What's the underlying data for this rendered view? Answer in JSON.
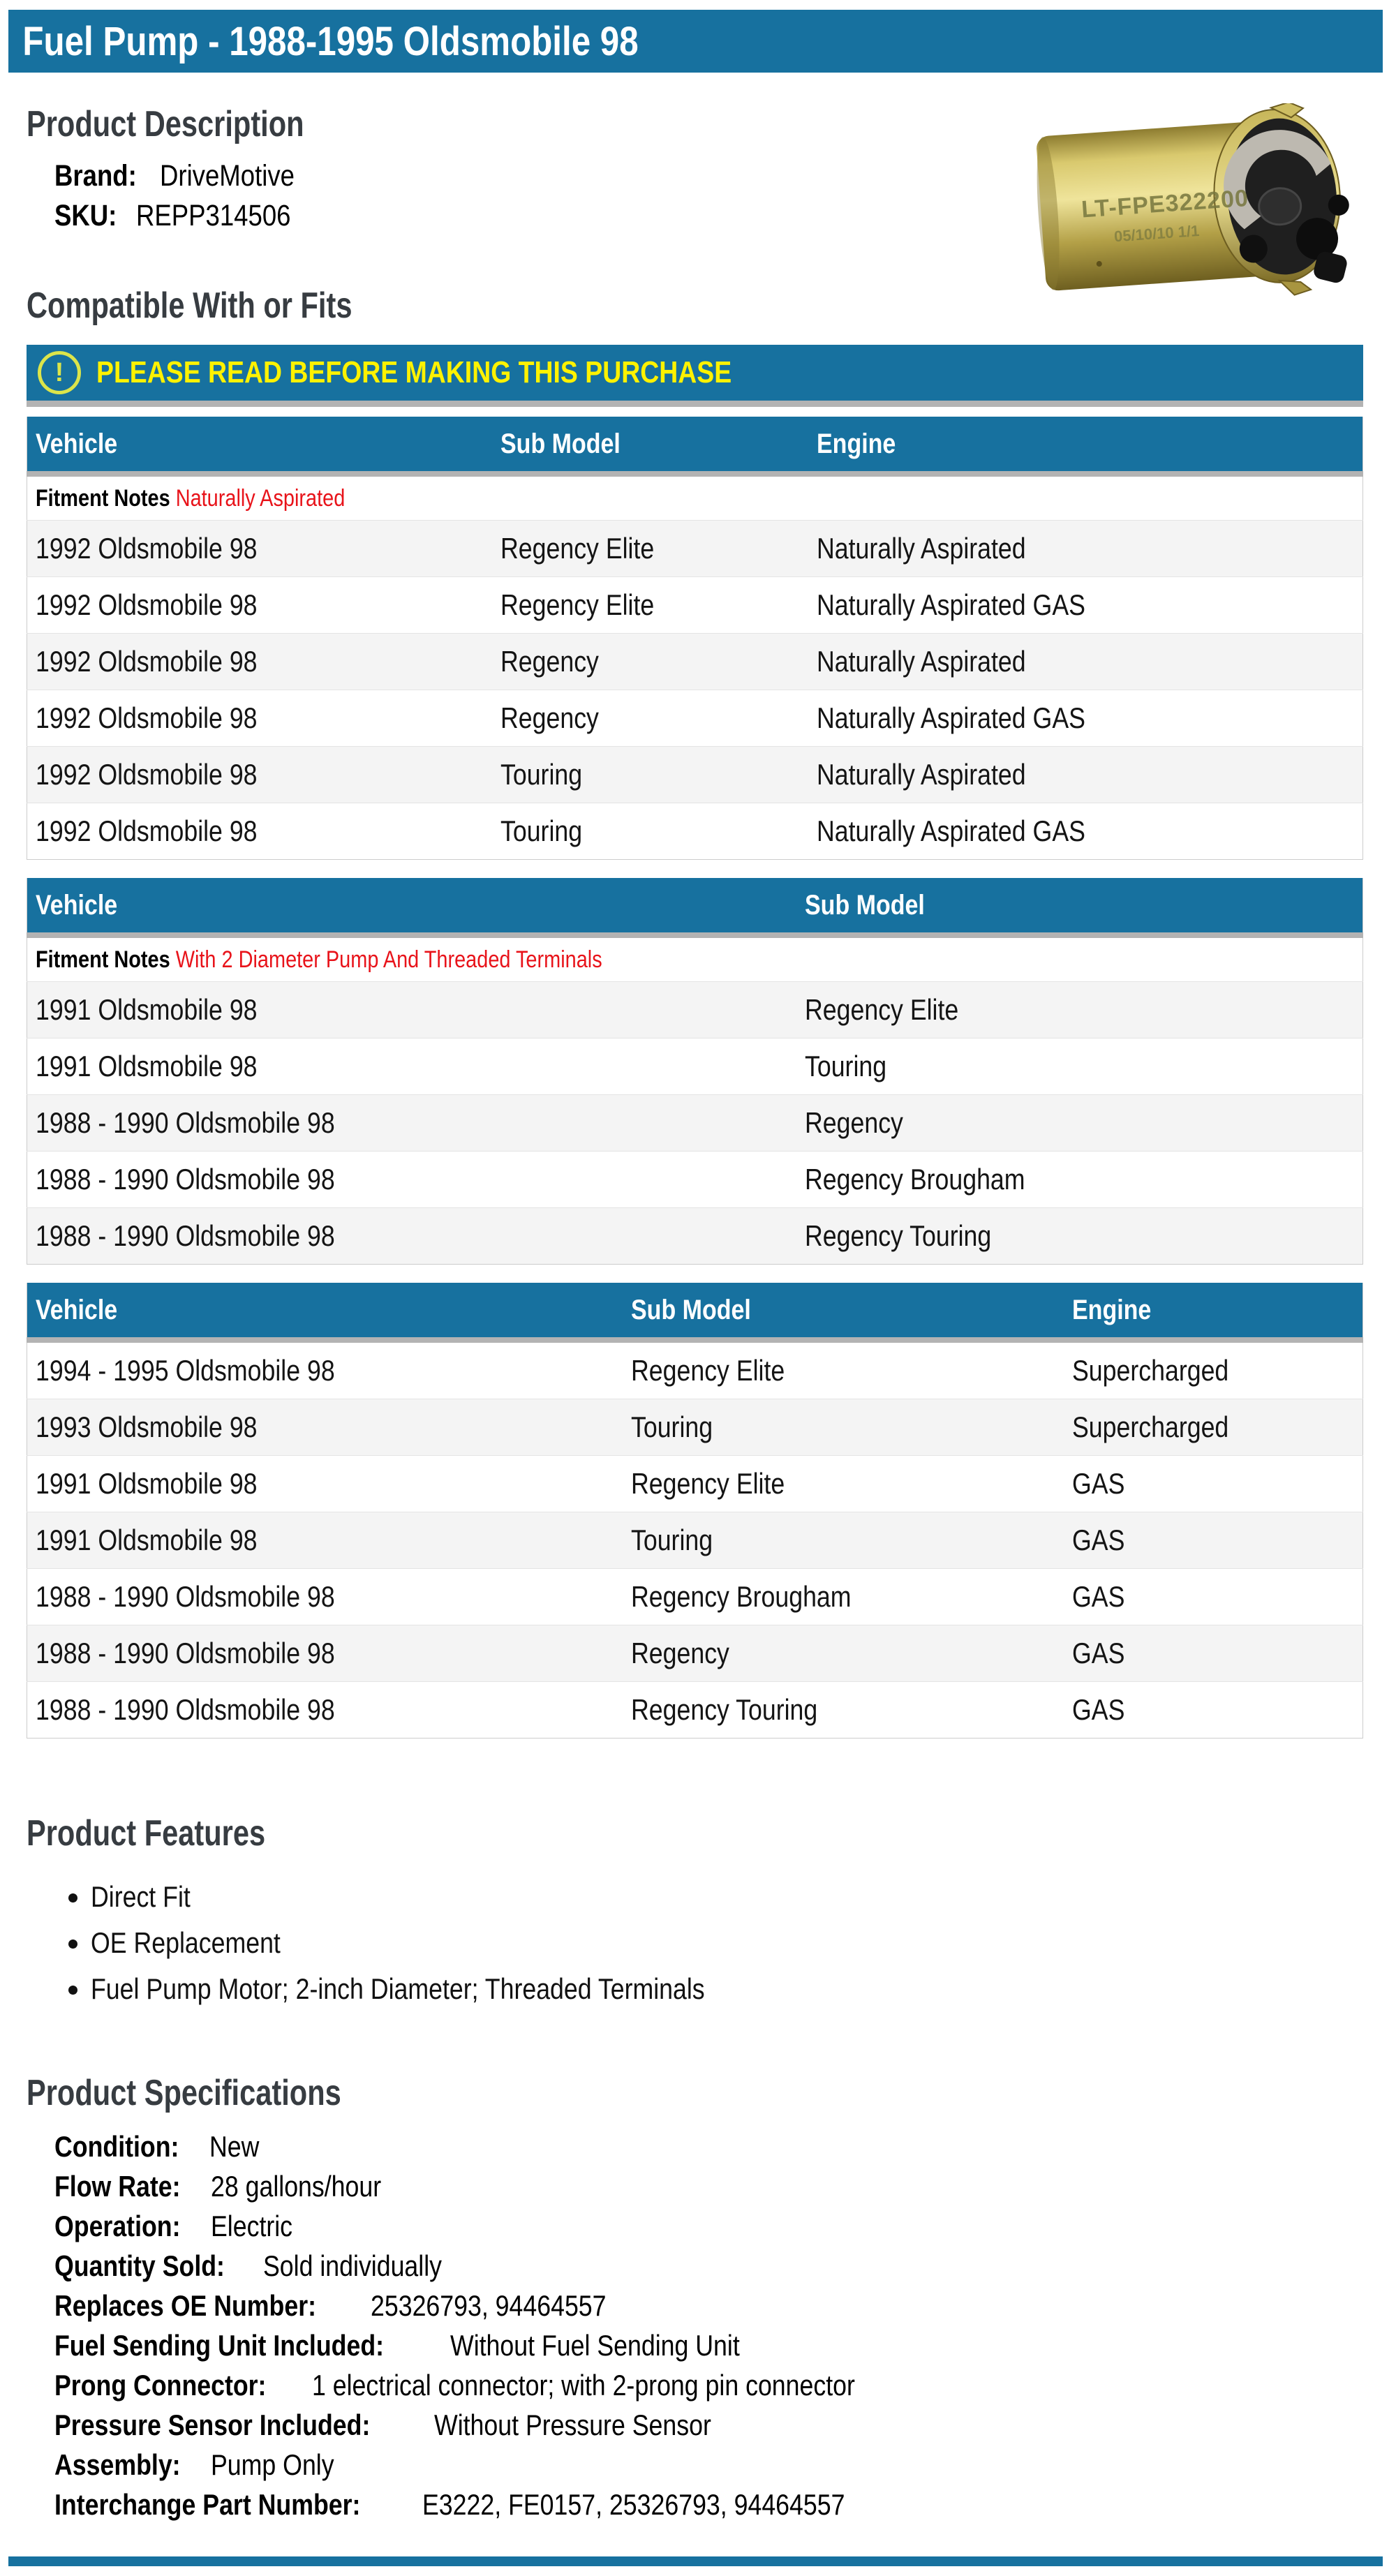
{
  "page": {
    "title": "Fuel Pump - 1988-1995 Oldsmobile 98"
  },
  "colors": {
    "brand_blue": "#17719F",
    "warning_yellow": "#FFF200",
    "icon_yellow_green": "#DCE54A",
    "fitment_red": "#E8131A",
    "row_stripe_gray": "#F4F4F4",
    "divider_gray": "#B3B3B3"
  },
  "product_description": {
    "heading": "Product Description",
    "brand_label": "Brand:",
    "brand_value": "DriveMotive",
    "sku_label": "SKU:",
    "sku_value": "REPP314506",
    "image_text_line1": "LT-FPE322200",
    "image_text_line2": "05/10/10 1/1"
  },
  "compatibility": {
    "heading": "Compatible With or Fits",
    "warning_icon_glyph": "!",
    "warning": "PLEASE READ BEFORE MAKING THIS PURCHASE",
    "fitment_notes_label": "Fitment Notes",
    "tables": [
      {
        "columns": [
          "Vehicle",
          "Sub Model",
          "Engine"
        ],
        "fitment_notes": "Naturally Aspirated",
        "rows": [
          [
            "1992 Oldsmobile 98",
            "Regency Elite",
            "Naturally Aspirated"
          ],
          [
            "1992 Oldsmobile 98",
            "Regency Elite",
            "Naturally Aspirated GAS"
          ],
          [
            "1992 Oldsmobile 98",
            "Regency",
            "Naturally Aspirated"
          ],
          [
            "1992 Oldsmobile 98",
            "Regency",
            "Naturally Aspirated GAS"
          ],
          [
            "1992 Oldsmobile 98",
            "Touring",
            "Naturally Aspirated"
          ],
          [
            "1992 Oldsmobile 98",
            "Touring",
            "Naturally Aspirated GAS"
          ]
        ]
      },
      {
        "columns": [
          "Vehicle",
          "Sub Model"
        ],
        "fitment_notes": "With 2 Diameter Pump And Threaded Terminals",
        "rows": [
          [
            "1991 Oldsmobile 98",
            "Regency Elite"
          ],
          [
            "1991 Oldsmobile 98",
            "Touring"
          ],
          [
            "1988 - 1990 Oldsmobile 98",
            "Regency"
          ],
          [
            "1988 - 1990 Oldsmobile 98",
            "Regency Brougham"
          ],
          [
            "1988 - 1990 Oldsmobile 98",
            "Regency Touring"
          ]
        ]
      },
      {
        "columns": [
          "Vehicle",
          "Sub Model",
          "Engine"
        ],
        "fitment_notes": null,
        "rows": [
          [
            "1994 - 1995 Oldsmobile 98",
            "Regency Elite",
            "Supercharged"
          ],
          [
            "1993 Oldsmobile 98",
            "Touring",
            "Supercharged"
          ],
          [
            "1991 Oldsmobile 98",
            "Regency Elite",
            "GAS"
          ],
          [
            "1991 Oldsmobile 98",
            "Touring",
            "GAS"
          ],
          [
            "1988 - 1990 Oldsmobile 98",
            "Regency Brougham",
            "GAS"
          ],
          [
            "1988 - 1990 Oldsmobile 98",
            "Regency",
            "GAS"
          ],
          [
            "1988 - 1990 Oldsmobile 98",
            "Regency Touring",
            "GAS"
          ]
        ]
      }
    ]
  },
  "features": {
    "heading": "Product Features",
    "items": [
      "Direct Fit",
      "OE Replacement",
      "Fuel Pump Motor; 2-inch Diameter; Threaded Terminals"
    ]
  },
  "specifications": {
    "heading": "Product Specifications",
    "items": [
      {
        "label": "Condition:",
        "value": "New"
      },
      {
        "label": "Flow Rate:",
        "value": "28 gallons/hour"
      },
      {
        "label": "Operation:",
        "value": "Electric"
      },
      {
        "label": "Quantity Sold:",
        "value": "Sold individually"
      },
      {
        "label": "Replaces OE Number:",
        "value": "25326793, 94464557"
      },
      {
        "label": "Fuel Sending Unit Included:",
        "value": "Without Fuel Sending Unit"
      },
      {
        "label": "Prong Connector:",
        "value": "1 electrical connector; with 2-prong pin connector"
      },
      {
        "label": "Pressure Sensor Included:",
        "value": "Without Pressure Sensor"
      },
      {
        "label": "Assembly:",
        "value": "Pump Only"
      },
      {
        "label": "Interchange Part Number:",
        "value": "E3222, FE0157, 25326793, 94464557"
      }
    ]
  }
}
